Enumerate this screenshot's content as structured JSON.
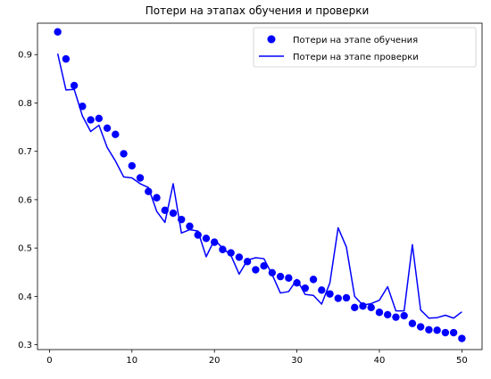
{
  "chart_data": {
    "type": "line",
    "title": "Потери на этапах обучения и проверки",
    "xlabel": "",
    "ylabel": "",
    "xlim": [
      -1.45,
      52.45
    ],
    "ylim": [
      0.29,
      0.965
    ],
    "x_ticks": [
      0,
      10,
      20,
      30,
      40,
      50
    ],
    "y_ticks": [
      0.3,
      0.4,
      0.5,
      0.6,
      0.7,
      0.8,
      0.9
    ],
    "grid": false,
    "legend": {
      "placement": "top-right"
    },
    "x": [
      1,
      2,
      3,
      4,
      5,
      6,
      7,
      8,
      9,
      10,
      11,
      12,
      13,
      14,
      15,
      16,
      17,
      18,
      19,
      20,
      21,
      22,
      23,
      24,
      25,
      26,
      27,
      28,
      29,
      30,
      31,
      32,
      33,
      34,
      35,
      36,
      37,
      38,
      39,
      40,
      41,
      42,
      43,
      44,
      45,
      46,
      47,
      48,
      49,
      50
    ],
    "series": [
      {
        "name": "Потери на этапе обучения",
        "kind": "scatter",
        "color": "#0000ff",
        "values": [
          0.947,
          0.891,
          0.836,
          0.793,
          0.765,
          0.768,
          0.748,
          0.735,
          0.695,
          0.67,
          0.645,
          0.617,
          0.604,
          0.578,
          0.572,
          0.559,
          0.545,
          0.527,
          0.52,
          0.512,
          0.497,
          0.49,
          0.481,
          0.472,
          0.455,
          0.463,
          0.449,
          0.441,
          0.438,
          0.428,
          0.417,
          0.435,
          0.413,
          0.405,
          0.396,
          0.397,
          0.377,
          0.38,
          0.377,
          0.367,
          0.362,
          0.357,
          0.36,
          0.344,
          0.337,
          0.331,
          0.33,
          0.325,
          0.325,
          0.313
        ]
      },
      {
        "name": "Потери на этапе проверки",
        "kind": "line",
        "color": "#0000ff",
        "values": [
          0.902,
          0.827,
          0.828,
          0.773,
          0.741,
          0.754,
          0.708,
          0.68,
          0.647,
          0.645,
          0.633,
          0.625,
          0.576,
          0.553,
          0.633,
          0.531,
          0.538,
          0.535,
          0.482,
          0.517,
          0.5,
          0.485,
          0.446,
          0.475,
          0.48,
          0.478,
          0.445,
          0.407,
          0.41,
          0.435,
          0.404,
          0.402,
          0.384,
          0.428,
          0.542,
          0.502,
          0.4,
          0.382,
          0.385,
          0.392,
          0.42,
          0.37,
          0.37,
          0.507,
          0.372,
          0.355,
          0.356,
          0.361,
          0.355,
          0.368
        ]
      }
    ]
  }
}
